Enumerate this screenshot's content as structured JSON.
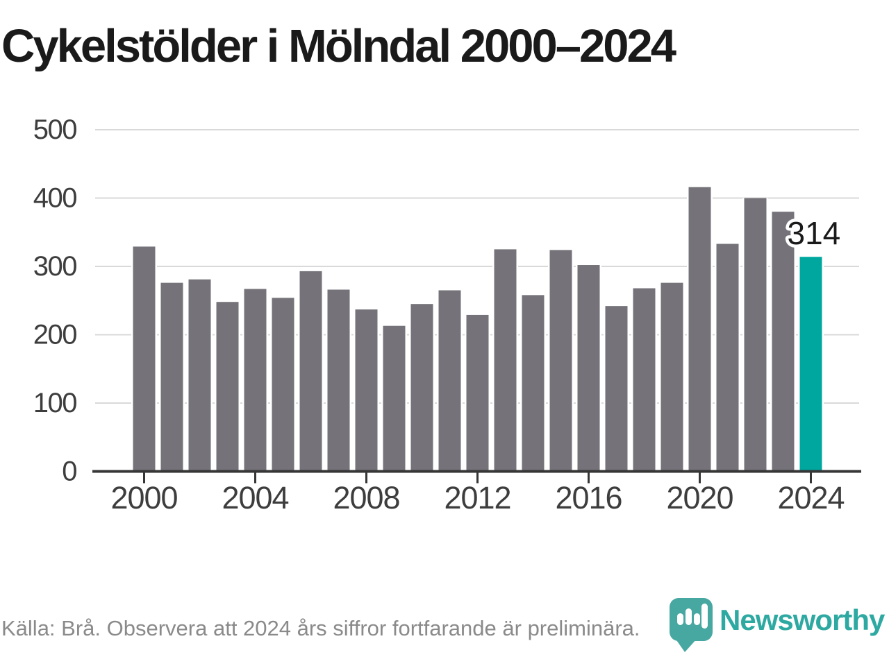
{
  "title": "Cykelstölder i Mölndal 2000–2024",
  "source_note": "Källa: Brå. Observera att 2024 års siffror fortfarande är preliminära.",
  "brand": {
    "name": "Newsworthy"
  },
  "colors": {
    "bar": "#757379",
    "highlight": "#00a79e",
    "grid": "#d9d9d9",
    "axis": "#363636",
    "tick_label": "#3d3d3d",
    "title": "#1a1a1a",
    "note": "#8a8a8a",
    "value_label": "#1a1a1a",
    "brand_text": "#2ea9a2",
    "logo_icon": "#47a8a1"
  },
  "chart_data": {
    "type": "bar",
    "title": "Cykelstölder i Mölndal 2000–2024",
    "x": [
      2000,
      2001,
      2002,
      2003,
      2004,
      2005,
      2006,
      2007,
      2008,
      2009,
      2010,
      2011,
      2012,
      2013,
      2014,
      2015,
      2016,
      2017,
      2018,
      2019,
      2020,
      2021,
      2022,
      2023,
      2024
    ],
    "values": [
      329,
      276,
      281,
      248,
      267,
      254,
      293,
      266,
      237,
      213,
      245,
      265,
      229,
      325,
      258,
      324,
      302,
      242,
      268,
      276,
      416,
      333,
      400,
      380,
      314
    ],
    "highlight_x": 2024,
    "highlight_label": "314",
    "xlabel": "",
    "ylabel": "",
    "ylim": [
      0,
      500
    ],
    "yticks": [
      0,
      100,
      200,
      300,
      400,
      500
    ],
    "xticks": [
      2000,
      2004,
      2008,
      2012,
      2016,
      2020,
      2024
    ],
    "grid": true,
    "legend": "none"
  }
}
